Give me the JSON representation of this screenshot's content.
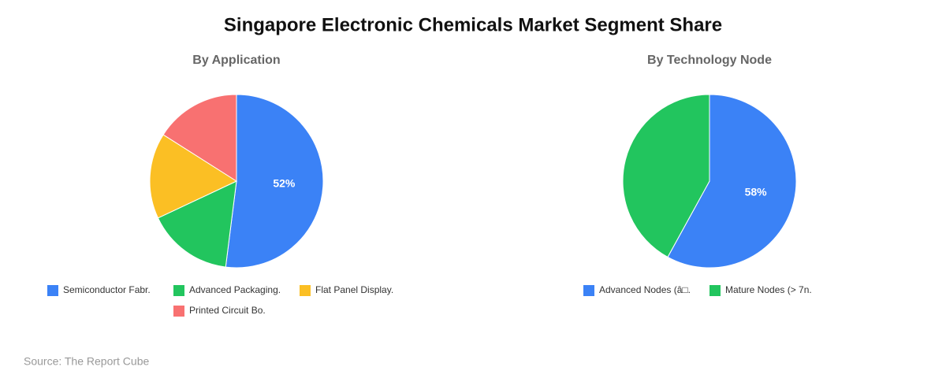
{
  "title": "Singapore Electronic Chemicals Market Segment Share",
  "source": "Source: The Report Cube",
  "chart_data": [
    {
      "type": "pie",
      "title": "By Application",
      "categories": [
        "Semiconductor Fabr.",
        "Advanced Packaging.",
        "Flat Panel Display.",
        "Printed Circuit Bo."
      ],
      "values": [
        52,
        16,
        16,
        16
      ],
      "value_labels": [
        "52%",
        null,
        null,
        null
      ],
      "colors": [
        "#3b82f6",
        "#22c55e",
        "#fbbf24",
        "#f87171"
      ]
    },
    {
      "type": "pie",
      "title": "By Technology Node",
      "categories": [
        "Advanced Nodes (â□.",
        "Mature Nodes (> 7n."
      ],
      "values": [
        58,
        42
      ],
      "value_labels": [
        "58%",
        null
      ],
      "colors": [
        "#3b82f6",
        "#22c55e"
      ]
    }
  ]
}
